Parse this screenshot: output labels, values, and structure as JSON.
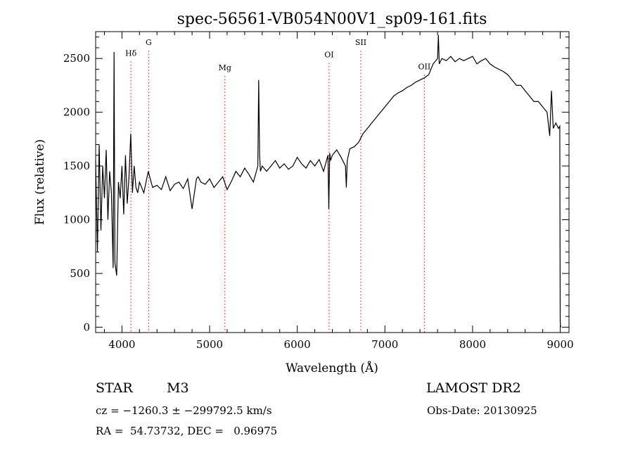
{
  "chart_data": {
    "type": "line",
    "title": "spec-56561-VB054N00V1_sp09-161.fits",
    "xlabel": "Wavelength (Å)",
    "ylabel": "Flux (relative)",
    "xlim": [
      3700,
      9100
    ],
    "ylim": [
      -50,
      2750
    ],
    "x_ticks": [
      4000,
      5000,
      6000,
      7000,
      8000,
      9000
    ],
    "y_ticks": [
      0,
      500,
      1000,
      1500,
      2000,
      2500
    ],
    "grid": false,
    "line_color": "#000000",
    "marker_color": "#ff0000",
    "series": [
      {
        "x": [
          3700,
          3720,
          3740,
          3760,
          3780,
          3800,
          3820,
          3840,
          3860,
          3880,
          3900,
          3910,
          3920,
          3940,
          3960,
          3980,
          4000,
          4020,
          4040,
          4060,
          4080,
          4100,
          4120,
          4140,
          4160,
          4180,
          4200,
          4250,
          4300,
          4350,
          4400,
          4450,
          4500,
          4550,
          4600,
          4650,
          4700,
          4750,
          4800,
          4850,
          4870,
          4900,
          4950,
          5000,
          5050,
          5100,
          5150,
          5200,
          5250,
          5300,
          5350,
          5400,
          5450,
          5500,
          5550,
          5560,
          5570,
          5580,
          5600,
          5650,
          5700,
          5750,
          5800,
          5850,
          5900,
          5950,
          6000,
          6050,
          6100,
          6150,
          6200,
          6250,
          6300,
          6350,
          6360,
          6370,
          6380,
          6400,
          6450,
          6500,
          6550,
          6560,
          6570,
          6600,
          6650,
          6700,
          6750,
          6800,
          6850,
          6900,
          6950,
          7000,
          7050,
          7100,
          7150,
          7200,
          7250,
          7300,
          7350,
          7400,
          7450,
          7500,
          7550,
          7600,
          7610,
          7620,
          7650,
          7700,
          7750,
          7800,
          7850,
          7900,
          7950,
          8000,
          8050,
          8100,
          8150,
          8200,
          8250,
          8300,
          8350,
          8400,
          8450,
          8500,
          8550,
          8600,
          8650,
          8700,
          8750,
          8800,
          8850,
          8880,
          8900,
          8920,
          8950,
          8980,
          8995,
          9000,
          9005
        ],
        "y": [
          1550,
          700,
          1700,
          900,
          1500,
          1200,
          1650,
          1000,
          1450,
          1250,
          550,
          2560,
          600,
          480,
          1350,
          1200,
          1500,
          1050,
          1600,
          1150,
          1400,
          1800,
          1250,
          1500,
          1300,
          1250,
          1350,
          1250,
          1450,
          1300,
          1320,
          1280,
          1400,
          1270,
          1330,
          1350,
          1290,
          1380,
          1100,
          1380,
          1400,
          1350,
          1330,
          1380,
          1300,
          1350,
          1400,
          1280,
          1360,
          1450,
          1400,
          1480,
          1420,
          1350,
          1500,
          2300,
          1600,
          1450,
          1500,
          1450,
          1500,
          1550,
          1480,
          1520,
          1470,
          1500,
          1580,
          1520,
          1480,
          1550,
          1500,
          1560,
          1450,
          1600,
          1100,
          1620,
          1550,
          1600,
          1650,
          1580,
          1500,
          1300,
          1550,
          1660,
          1680,
          1720,
          1800,
          1850,
          1900,
          1950,
          2000,
          2050,
          2100,
          2150,
          2180,
          2200,
          2230,
          2250,
          2280,
          2300,
          2320,
          2350,
          2450,
          2500,
          2720,
          2450,
          2500,
          2480,
          2520,
          2470,
          2500,
          2480,
          2500,
          2520,
          2450,
          2480,
          2500,
          2450,
          2420,
          2400,
          2380,
          2350,
          2300,
          2250,
          2250,
          2200,
          2150,
          2100,
          2100,
          2050,
          2000,
          1780,
          2200,
          1850,
          1900,
          1850,
          1870,
          50,
          0
        ]
      }
    ],
    "annotations": [
      {
        "label": "Hδ",
        "x": 4102,
        "text_y": 2525
      },
      {
        "label": "G",
        "x": 4305,
        "text_y": 2625
      },
      {
        "label": "Mg",
        "x": 5175,
        "text_y": 2390
      },
      {
        "label": "OI",
        "x": 6363,
        "text_y": 2510
      },
      {
        "label": "SII",
        "x": 6725,
        "text_y": 2625
      },
      {
        "label": "OII",
        "x": 7450,
        "text_y": 2400
      }
    ]
  },
  "info": {
    "class_label": "STAR",
    "subclass_label": "M3",
    "survey": "LAMOST DR2",
    "redshift_line": "cz = −1260.3 ± −299792.5 km/s",
    "obs_date": "Obs-Date: 20130925",
    "coords_line": "RA =  54.73732, DEC =   0.96975"
  }
}
